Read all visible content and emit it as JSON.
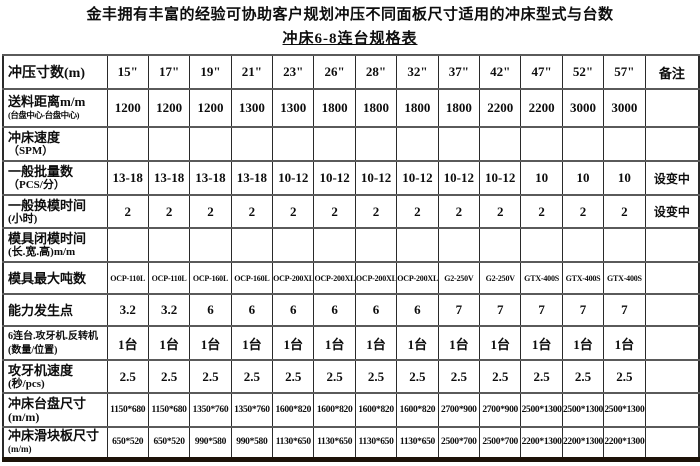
{
  "page": {
    "title_line1": "金丰拥有丰富的经验可协助客户规划冲压不同面板尺寸适用的冲床型式与台数",
    "title_line2": "冲床6-8连台规格表"
  },
  "table": {
    "header": {
      "label": "冲压寸数(m)",
      "columns": [
        "15\"",
        "17\"",
        "19\"",
        "21\"",
        "23\"",
        "26\"",
        "28\"",
        "32\"",
        "37\"",
        "42\"",
        "47\"",
        "52\"",
        "57\""
      ],
      "remark": "备注"
    },
    "rows": [
      {
        "label": "送料距离m/m",
        "sublabel": "(台盘中心-台盘中心)",
        "values": [
          "1200",
          "1200",
          "1200",
          "1300",
          "1300",
          "1800",
          "1800",
          "1800",
          "1800",
          "2200",
          "2200",
          "3000",
          "3000"
        ],
        "remark": ""
      },
      {
        "label": "冲床速度",
        "sublabel": "（SPM）",
        "values": [
          "",
          "",
          "",
          "",
          "",
          "",
          "",
          "",
          "",
          "",
          "",
          "",
          ""
        ],
        "remark": ""
      },
      {
        "label": "一般批量数",
        "sublabel": "（PCS/分）",
        "values": [
          "13-18",
          "13-18",
          "13-18",
          "13-18",
          "10-12",
          "10-12",
          "10-12",
          "10-12",
          "10-12",
          "10-12",
          "10",
          "10",
          "10"
        ],
        "remark": "设变中"
      },
      {
        "label": "一般换模时间",
        "sublabel": "(小时)",
        "values": [
          "2",
          "2",
          "2",
          "2",
          "2",
          "2",
          "2",
          "2",
          "2",
          "2",
          "2",
          "2",
          "2"
        ],
        "remark": "设变中"
      },
      {
        "label": "模具闭模时间",
        "sublabel": "(长.宽.高)m/m",
        "values": [
          "",
          "",
          "",
          "",
          "",
          "",
          "",
          "",
          "",
          "",
          "",
          "",
          ""
        ],
        "remark": ""
      },
      {
        "label": "模具最大吨数",
        "sublabel": "",
        "values": [
          "OCP-110L",
          "OCP-110L",
          "OCP-160L",
          "OCP-160L",
          "OCP-200XL",
          "OCP-200XL",
          "OCP-200XL",
          "OCP-200XL",
          "G2-250V",
          "G2-250V",
          "GTX-400S",
          "GTX-400S",
          "GTX-400S"
        ],
        "remark": ""
      },
      {
        "label": "能力发生点",
        "sublabel": "",
        "values": [
          "3.2",
          "3.2",
          "6",
          "6",
          "6",
          "6",
          "6",
          "6",
          "7",
          "7",
          "7",
          "7",
          "7"
        ],
        "remark": ""
      },
      {
        "label": "6连台.攻牙机.反转机",
        "sublabel": "(数量/位置)",
        "values": [
          "1台",
          "1台",
          "1台",
          "1台",
          "1台",
          "1台",
          "1台",
          "1台",
          "1台",
          "1台",
          "1台",
          "1台",
          "1台"
        ],
        "remark": ""
      },
      {
        "label": "攻牙机速度",
        "sublabel": "(秒/pcs)",
        "values": [
          "2.5",
          "2.5",
          "2.5",
          "2.5",
          "2.5",
          "2.5",
          "2.5",
          "2.5",
          "2.5",
          "2.5",
          "2.5",
          "2.5",
          "2.5"
        ],
        "remark": ""
      },
      {
        "label": "冲床台盘尺寸",
        "sublabel": "(m/m)",
        "values": [
          "1150*680",
          "1150*680",
          "1350*760",
          "1350*760",
          "1600*820",
          "1600*820",
          "1600*820",
          "1600*820",
          "2700*900",
          "2700*900",
          "2500*1300",
          "2500*1300",
          "2500*1300"
        ],
        "remark": ""
      },
      {
        "label": "冲床滑块板尺寸",
        "sublabel": "(m/m)",
        "values": [
          "650*520",
          "650*520",
          "990*580",
          "990*580",
          "1130*650",
          "1130*650",
          "1130*650",
          "1130*650",
          "2500*700",
          "2500*700",
          "2200*1300",
          "2200*1300",
          "2200*1300"
        ],
        "remark": ""
      }
    ]
  }
}
